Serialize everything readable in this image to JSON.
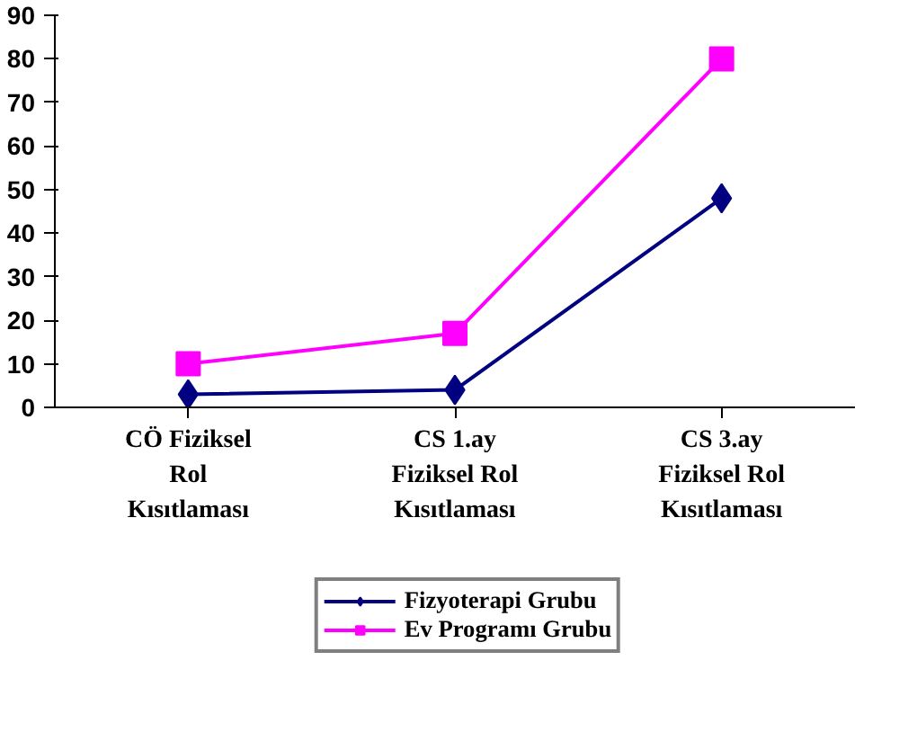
{
  "chart_data": {
    "type": "line",
    "categories": [
      "CÖ Fiziksel Rol Kısıtlaması",
      "CS 1.ay Fiziksel Rol Kısıtlaması",
      "CS 3.ay Fiziksel Rol Kısıtlaması"
    ],
    "series": [
      {
        "name": "Fizyoterapi Grubu",
        "color": "#000080",
        "marker": "diamond",
        "values": [
          3,
          4,
          48
        ]
      },
      {
        "name": "Ev Programı Grubu",
        "color": "#ff00ff",
        "marker": "square",
        "values": [
          10,
          17,
          80
        ]
      }
    ],
    "ylim": [
      0,
      90
    ],
    "yticks": [
      0,
      10,
      20,
      30,
      40,
      50,
      60,
      70,
      80,
      90
    ],
    "grid": false,
    "legend": "bottom"
  }
}
